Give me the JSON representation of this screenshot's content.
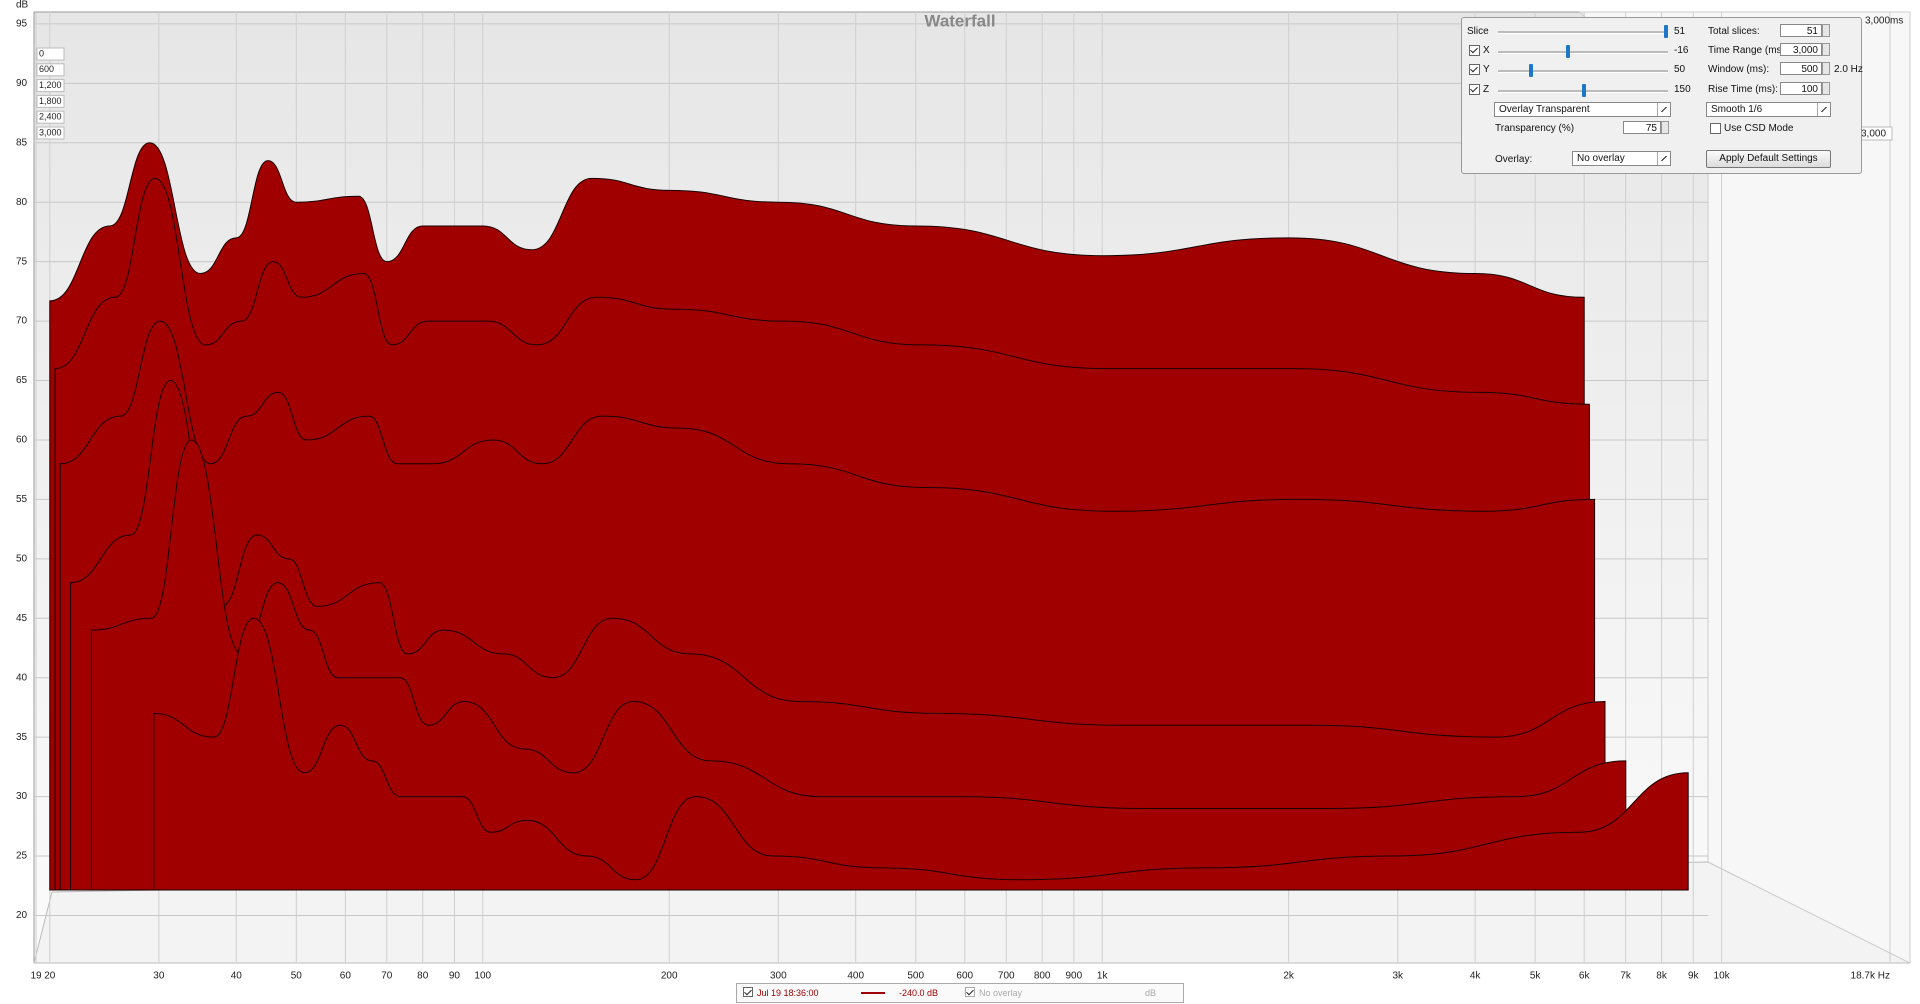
{
  "chart_data": {
    "type": "waterfall",
    "title": "Waterfall",
    "y_label": "dB",
    "ylim": [
      16,
      96
    ],
    "yticks": [
      20,
      25,
      30,
      35,
      40,
      45,
      50,
      55,
      60,
      65,
      70,
      75,
      80,
      85,
      90,
      95
    ],
    "xlim": [
      19,
      18700
    ],
    "log_x": true,
    "grid": true,
    "xticks": [
      19,
      20,
      30,
      40,
      50,
      60,
      70,
      80,
      90,
      100,
      200,
      300,
      400,
      500,
      600,
      700,
      800,
      900,
      {
        "value": 1000,
        "label": "1k"
      },
      {
        "value": 2000,
        "label": "2k"
      },
      {
        "value": 3000,
        "label": "3k"
      },
      {
        "value": 4000,
        "label": "4k"
      },
      {
        "value": 5000,
        "label": "5k"
      },
      {
        "value": 6000,
        "label": "6k"
      },
      {
        "value": 7000,
        "label": "7k"
      },
      {
        "value": 8000,
        "label": "8k"
      },
      {
        "value": 9000,
        "label": "9k"
      },
      {
        "value": 10000,
        "label": "10k"
      },
      {
        "value": 18700,
        "label": "18.7k Hz"
      }
    ],
    "zlim": [
      0,
      3000
    ],
    "zticks": [
      0,
      600,
      {
        "value": 1200,
        "label": "1,200"
      },
      {
        "value": 1800,
        "label": "1,800"
      },
      {
        "value": 2400,
        "label": "2,400"
      },
      {
        "value": 3000,
        "label": "3,000"
      }
    ],
    "z_right_tick": {
      "value": 3000,
      "label": "3,000"
    },
    "z_end_label": {
      "value": 3000,
      "label": "3,000ms"
    },
    "color": "#a00000",
    "frequencies": [
      20,
      25,
      29,
      35,
      40,
      45,
      50,
      63,
      70,
      80,
      100,
      120,
      150,
      200,
      300,
      500,
      1000,
      2000,
      4000,
      6000
    ],
    "slices": [
      {
        "time": 0,
        "values": [
          71.7,
          78,
          85,
          74,
          77,
          83.5,
          80,
          80.5,
          75,
          78,
          78,
          76,
          82,
          81,
          80,
          78,
          75.5,
          77,
          74,
          72
        ]
      },
      {
        "time": 150,
        "values": [
          66,
          72,
          82,
          68,
          70,
          75,
          72,
          74,
          68,
          70,
          70,
          68,
          72,
          71,
          70,
          68,
          66,
          66,
          64,
          63
        ]
      },
      {
        "time": 300,
        "values": [
          58,
          62,
          70,
          58,
          62,
          64,
          60,
          62,
          58,
          58,
          60,
          58,
          62,
          61,
          58,
          56,
          54,
          55,
          54,
          55
        ]
      },
      {
        "time": 600,
        "values": [
          48,
          52,
          65,
          46,
          52,
          50,
          46,
          48,
          42,
          44,
          42,
          40,
          45,
          42,
          38,
          37,
          36,
          36,
          35,
          38
        ]
      },
      {
        "time": 1200,
        "values": [
          44,
          45,
          60,
          42,
          48,
          44,
          40,
          40,
          36,
          38,
          34,
          32,
          38,
          33,
          30,
          30,
          29,
          29,
          30,
          33
        ]
      },
      {
        "time": 3000,
        "values": [
          37,
          35,
          45,
          32,
          36,
          33,
          30,
          30,
          27,
          28,
          25,
          23,
          30,
          25,
          24,
          23,
          24,
          25,
          27,
          32
        ]
      }
    ]
  },
  "controls": {
    "slice": {
      "label": "Slice",
      "value": 51
    },
    "x": {
      "label": "X",
      "value": -16,
      "checked": true
    },
    "y": {
      "label": "Y",
      "value": 50,
      "checked": true
    },
    "z": {
      "label": "Z",
      "value": 150,
      "checked": true
    },
    "total_slices": {
      "label": "Total slices:",
      "value": 51
    },
    "time_range": {
      "label": "Time Range (ms):",
      "value": "3,000"
    },
    "window": {
      "label": "Window (ms):",
      "value": 500,
      "resolution": "2.0 Hz"
    },
    "rise_time": {
      "label": "Rise Time (ms):",
      "value": 100
    },
    "mode": "Overlay Transparent",
    "smoothing": "Smooth 1/6",
    "transparency": {
      "label": "Transparency (%)",
      "value": 75
    },
    "csd": {
      "label": "Use CSD Mode",
      "checked": false
    },
    "overlay": {
      "label": "Overlay:",
      "value": "No overlay"
    },
    "button": "Apply Default Settings"
  },
  "legend": {
    "date": "Jul 19 18:36:00",
    "level": "-240.0 dB",
    "overlay": "No overlay",
    "unit": "dB"
  }
}
